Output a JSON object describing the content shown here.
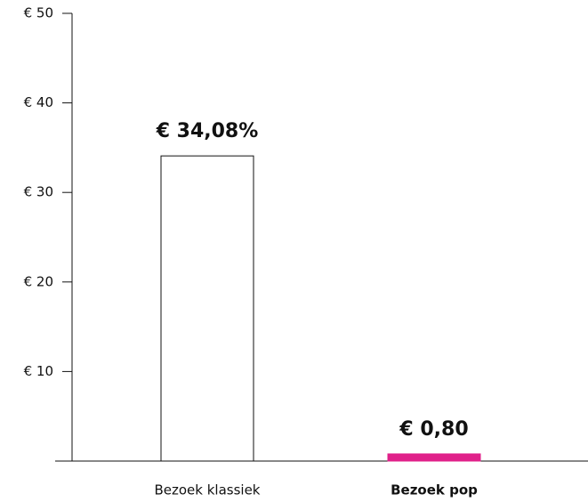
{
  "chart_data": {
    "type": "bar",
    "categories": [
      "Bezoek klassiek",
      "Bezoek pop"
    ],
    "values": [
      34.08,
      0.8
    ],
    "value_labels": [
      "€ 34,08%",
      "€ 0,80"
    ],
    "colors": [
      "#ffffff",
      "#e0218a"
    ],
    "label_colors": [
      "#111111",
      "#e0218a"
    ],
    "ylim": [
      0,
      50
    ],
    "yticks": [
      {
        "value": 10,
        "label": "€ 10"
      },
      {
        "value": 20,
        "label": "€ 20"
      },
      {
        "value": 30,
        "label": "€ 30"
      },
      {
        "value": 40,
        "label": "€ 40"
      },
      {
        "value": 50,
        "label": "€ 50"
      }
    ],
    "grid": false
  }
}
